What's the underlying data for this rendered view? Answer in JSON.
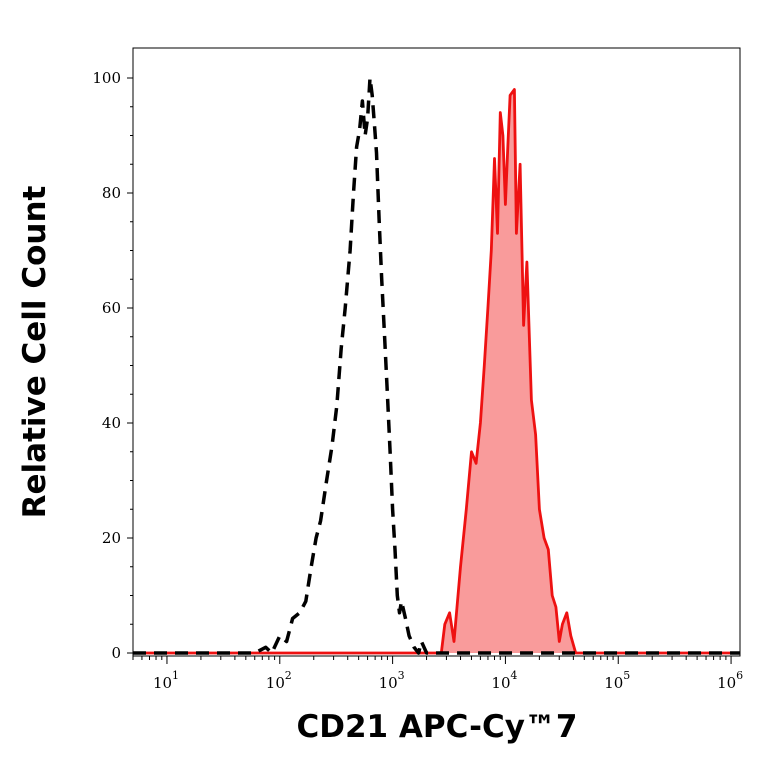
{
  "chart_data": {
    "type": "area",
    "xlabel": "CD21 APC-Cy™7",
    "ylabel": "Relative Cell Count",
    "xscale": "log",
    "xlim": [
      5,
      1200000
    ],
    "ylim": [
      0,
      100
    ],
    "x_ticks": [
      {
        "base": "10",
        "exp": "1",
        "value": 10
      },
      {
        "base": "10",
        "exp": "2",
        "value": 100
      },
      {
        "base": "10",
        "exp": "3",
        "value": 1000
      },
      {
        "base": "10",
        "exp": "4",
        "value": 10000
      },
      {
        "base": "10",
        "exp": "5",
        "value": 100000
      },
      {
        "base": "10",
        "exp": "6",
        "value": 1000000
      }
    ],
    "y_ticks": [
      "0",
      "20",
      "40",
      "60",
      "80",
      "100"
    ],
    "y_tick_values": [
      0,
      20,
      40,
      60,
      80,
      100
    ],
    "grid": false,
    "series": [
      {
        "style": "dashed",
        "color": "#000000",
        "fill": false,
        "x": [
          5,
          60,
          75,
          85,
          100,
          115,
          130,
          150,
          170,
          190,
          210,
          230,
          260,
          290,
          320,
          350,
          380,
          420,
          450,
          480,
          510,
          540,
          570,
          600,
          630,
          660,
          690,
          720,
          760,
          800,
          850,
          900,
          950,
          1000,
          1050,
          1100,
          1150,
          1200,
          1300,
          1400,
          1550,
          1700,
          1800,
          2000,
          2500,
          1200000
        ],
        "y": [
          0,
          0,
          1,
          0,
          3,
          2,
          6,
          7,
          9,
          15,
          20,
          23,
          30,
          36,
          43,
          53,
          60,
          70,
          80,
          88,
          91,
          96,
          90,
          93,
          100,
          97,
          92,
          87,
          75,
          65,
          55,
          45,
          35,
          25,
          18,
          10,
          7,
          9,
          6,
          3,
          1,
          0,
          2,
          0,
          0,
          0
        ]
      },
      {
        "style": "solid",
        "color": "#ee1111",
        "fill": true,
        "fill_color": "#f99b9b",
        "x": [
          5,
          2700,
          2900,
          3200,
          3500,
          4000,
          4500,
          5000,
          5500,
          6000,
          6500,
          7000,
          7500,
          8000,
          8500,
          9000,
          9500,
          10000,
          10500,
          11000,
          12000,
          12500,
          13500,
          14500,
          15500,
          17000,
          18500,
          20000,
          22000,
          24000,
          26000,
          28000,
          30000,
          32000,
          35000,
          38000,
          42000,
          45000,
          47000,
          1200000
        ],
        "y": [
          0,
          0,
          5,
          7,
          2,
          15,
          25,
          35,
          33,
          40,
          50,
          60,
          70,
          86,
          73,
          94,
          90,
          78,
          88,
          97,
          98,
          73,
          85,
          57,
          68,
          44,
          38,
          25,
          20,
          18,
          10,
          8,
          2,
          5,
          7,
          3,
          0,
          0,
          0,
          0
        ]
      }
    ]
  }
}
